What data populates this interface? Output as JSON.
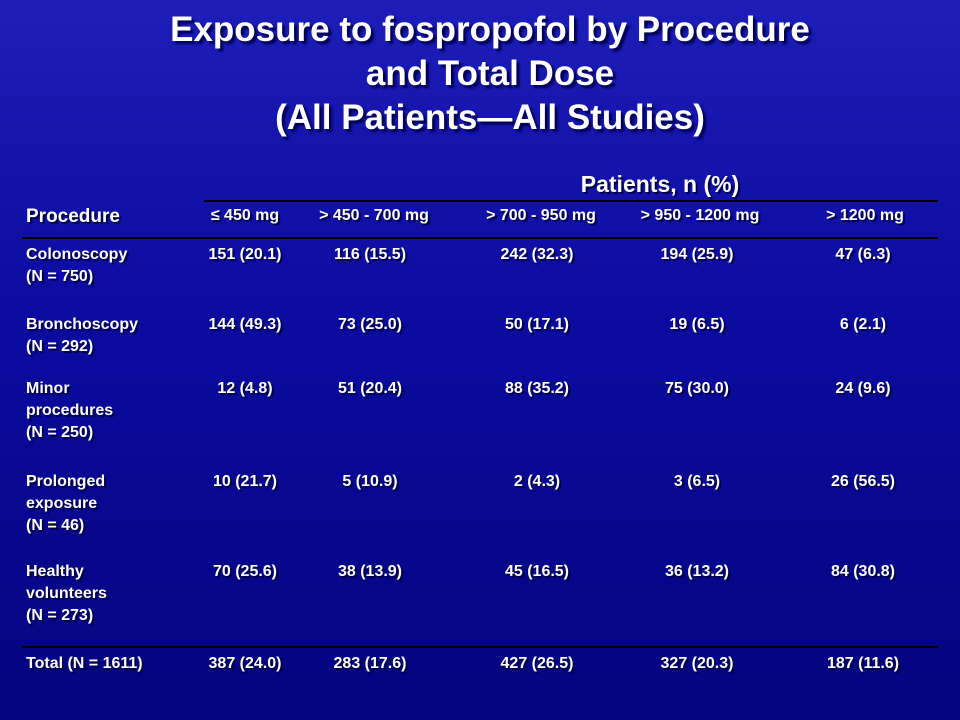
{
  "title": {
    "line1": "Exposure to fospropofol by Procedure",
    "line2": "and Total Dose",
    "line3": "(All Patients—All Studies)"
  },
  "table": {
    "group_header": "Patients, n (%)",
    "procedure_header": "Procedure",
    "columns": [
      "≤ 450 mg",
      "> 450 - 700 mg",
      "> 700 - 950 mg",
      "> 950 - 1200 mg",
      "> 1200 mg"
    ],
    "rows": [
      {
        "label": [
          "Colonoscopy",
          "(N = 750)"
        ],
        "values": [
          "151 (20.1)",
          "116 (15.5)",
          "242 (32.3)",
          "194 (25.9)",
          "47 (6.3)"
        ]
      },
      {
        "label": [
          "Bronchoscopy",
          "(N = 292)"
        ],
        "values": [
          "144 (49.3)",
          "73 (25.0)",
          "50 (17.1)",
          "19 (6.5)",
          "6 (2.1)"
        ]
      },
      {
        "label": [
          "Minor",
          "procedures",
          "(N = 250)"
        ],
        "values": [
          "12 (4.8)",
          "51 (20.4)",
          "88 (35.2)",
          "75 (30.0)",
          "24 (9.6)"
        ]
      },
      {
        "label": [
          "Prolonged",
          "exposure",
          "(N = 46)"
        ],
        "values": [
          "10 (21.7)",
          "5 (10.9)",
          "2 (4.3)",
          "3 (6.5)",
          "26 (56.5)"
        ]
      },
      {
        "label": [
          "Healthy",
          "volunteers",
          "(N = 273)"
        ],
        "values": [
          "70 (25.6)",
          "38 (13.9)",
          "45 (16.5)",
          "36 (13.2)",
          "84 (30.8)"
        ]
      },
      {
        "label": [
          "Total (N = 1611)"
        ],
        "values": [
          "387 (24.0)",
          "283 (17.6)",
          "427 (26.5)",
          "327 (20.3)",
          "187 (11.6)"
        ]
      }
    ]
  }
}
